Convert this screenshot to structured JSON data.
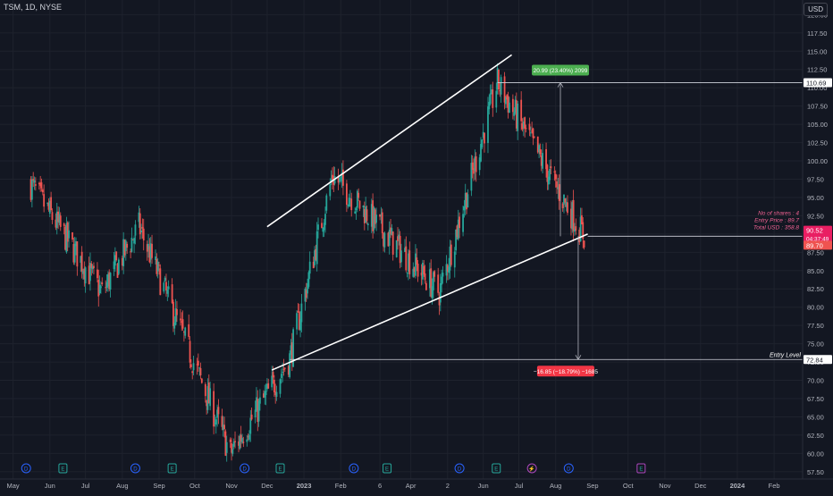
{
  "header": {
    "symbol": "TSM, 1D, NYSE",
    "currency": "USD"
  },
  "colors": {
    "background": "#131722",
    "grid": "#1e222d",
    "up": "#26a69a",
    "down": "#ef5350",
    "line": "#ffffff",
    "text": "#b2b5be",
    "axis": "#2a2e39",
    "profit_label": "#4caf50",
    "loss_label": "#f23645",
    "current_price": "#e91e63"
  },
  "chart_data": {
    "type": "candlestick",
    "title": "",
    "xlabel": "",
    "ylabel": "",
    "yaxis_ticks": [
      "120.00",
      "117.50",
      "115.00",
      "112.50",
      "110.00",
      "107.50",
      "105.00",
      "102.50",
      "100.00",
      "97.50",
      "95.00",
      "92.50",
      "90.00",
      "87.50",
      "85.00",
      "82.50",
      "80.00",
      "77.50",
      "75.00",
      "72.50",
      "70.00",
      "67.50",
      "65.00",
      "62.50",
      "60.00",
      "57.50"
    ],
    "ylim": [
      56.5,
      122.0
    ],
    "xaxis_ticks": [
      "May",
      "Jun",
      "Jul",
      "Aug",
      "Sep",
      "Oct",
      "Nov",
      "Dec",
      "2023",
      "Feb",
      "6",
      "Apr",
      "2",
      "Jun",
      "Jul",
      "Aug",
      "Sep",
      "Oct",
      "Nov",
      "Dec",
      "2024",
      "Feb"
    ],
    "price_key_points": [
      {
        "date": "2022-05",
        "price": 97.0
      },
      {
        "date": "2022-07",
        "price": 82.0
      },
      {
        "date": "2022-08",
        "price": 91.0
      },
      {
        "date": "2022-10-31",
        "price": 60.0
      },
      {
        "date": "2022-12-20",
        "price": 73.0
      },
      {
        "date": "2023-01-25",
        "price": 98.0
      },
      {
        "date": "2023-04-25",
        "price": 82.0
      },
      {
        "date": "2023-06-13",
        "price": 110.7
      },
      {
        "date": "2023-08-25",
        "price": 89.7
      }
    ],
    "channel_lines": [
      {
        "name": "upper",
        "from": {
          "date": "2022-12-01",
          "price": 91.0
        },
        "to": {
          "date": "2023-06-25",
          "price": 114.5
        }
      },
      {
        "name": "lower",
        "from": {
          "date": "2022-12-05",
          "price": 71.4
        },
        "to": {
          "date": "2023-08-28",
          "price": 90.0
        }
      }
    ],
    "horizontal_levels": [
      {
        "price": 110.69,
        "label": "110.69"
      },
      {
        "price": 90.52,
        "label": "90.52",
        "sublabel": "04:37:49"
      },
      {
        "price": 89.7,
        "label": "89.70"
      },
      {
        "price": 72.84,
        "label": "72.84",
        "annotation": "Entry Level"
      }
    ],
    "measurements": [
      {
        "text": "20.99 (23.40%) 2099",
        "kind": "profit"
      },
      {
        "text": "−16.85 (−18.79%) −1685",
        "kind": "loss"
      }
    ],
    "position_info": [
      "No of shares : 4",
      "Entry Price  : 89.7",
      "Total USD    : 358.8"
    ],
    "event_markers": [
      {
        "month": "2022-05",
        "type": "D"
      },
      {
        "month": "2022-06",
        "type": "E"
      },
      {
        "month": "2022-08",
        "type": "D"
      },
      {
        "month": "2022-09",
        "type": "E"
      },
      {
        "month": "2022-11",
        "type": "D"
      },
      {
        "month": "2022-12",
        "type": "E"
      },
      {
        "month": "2023-02",
        "type": "D"
      },
      {
        "month": "2023-03",
        "type": "E"
      },
      {
        "month": "2023-05",
        "type": "D"
      },
      {
        "month": "2023-06",
        "type": "E"
      },
      {
        "month": "2023-07",
        "type": "lightning"
      },
      {
        "month": "2023-08",
        "type": "D"
      },
      {
        "month": "2023-10",
        "type": "E"
      }
    ]
  }
}
